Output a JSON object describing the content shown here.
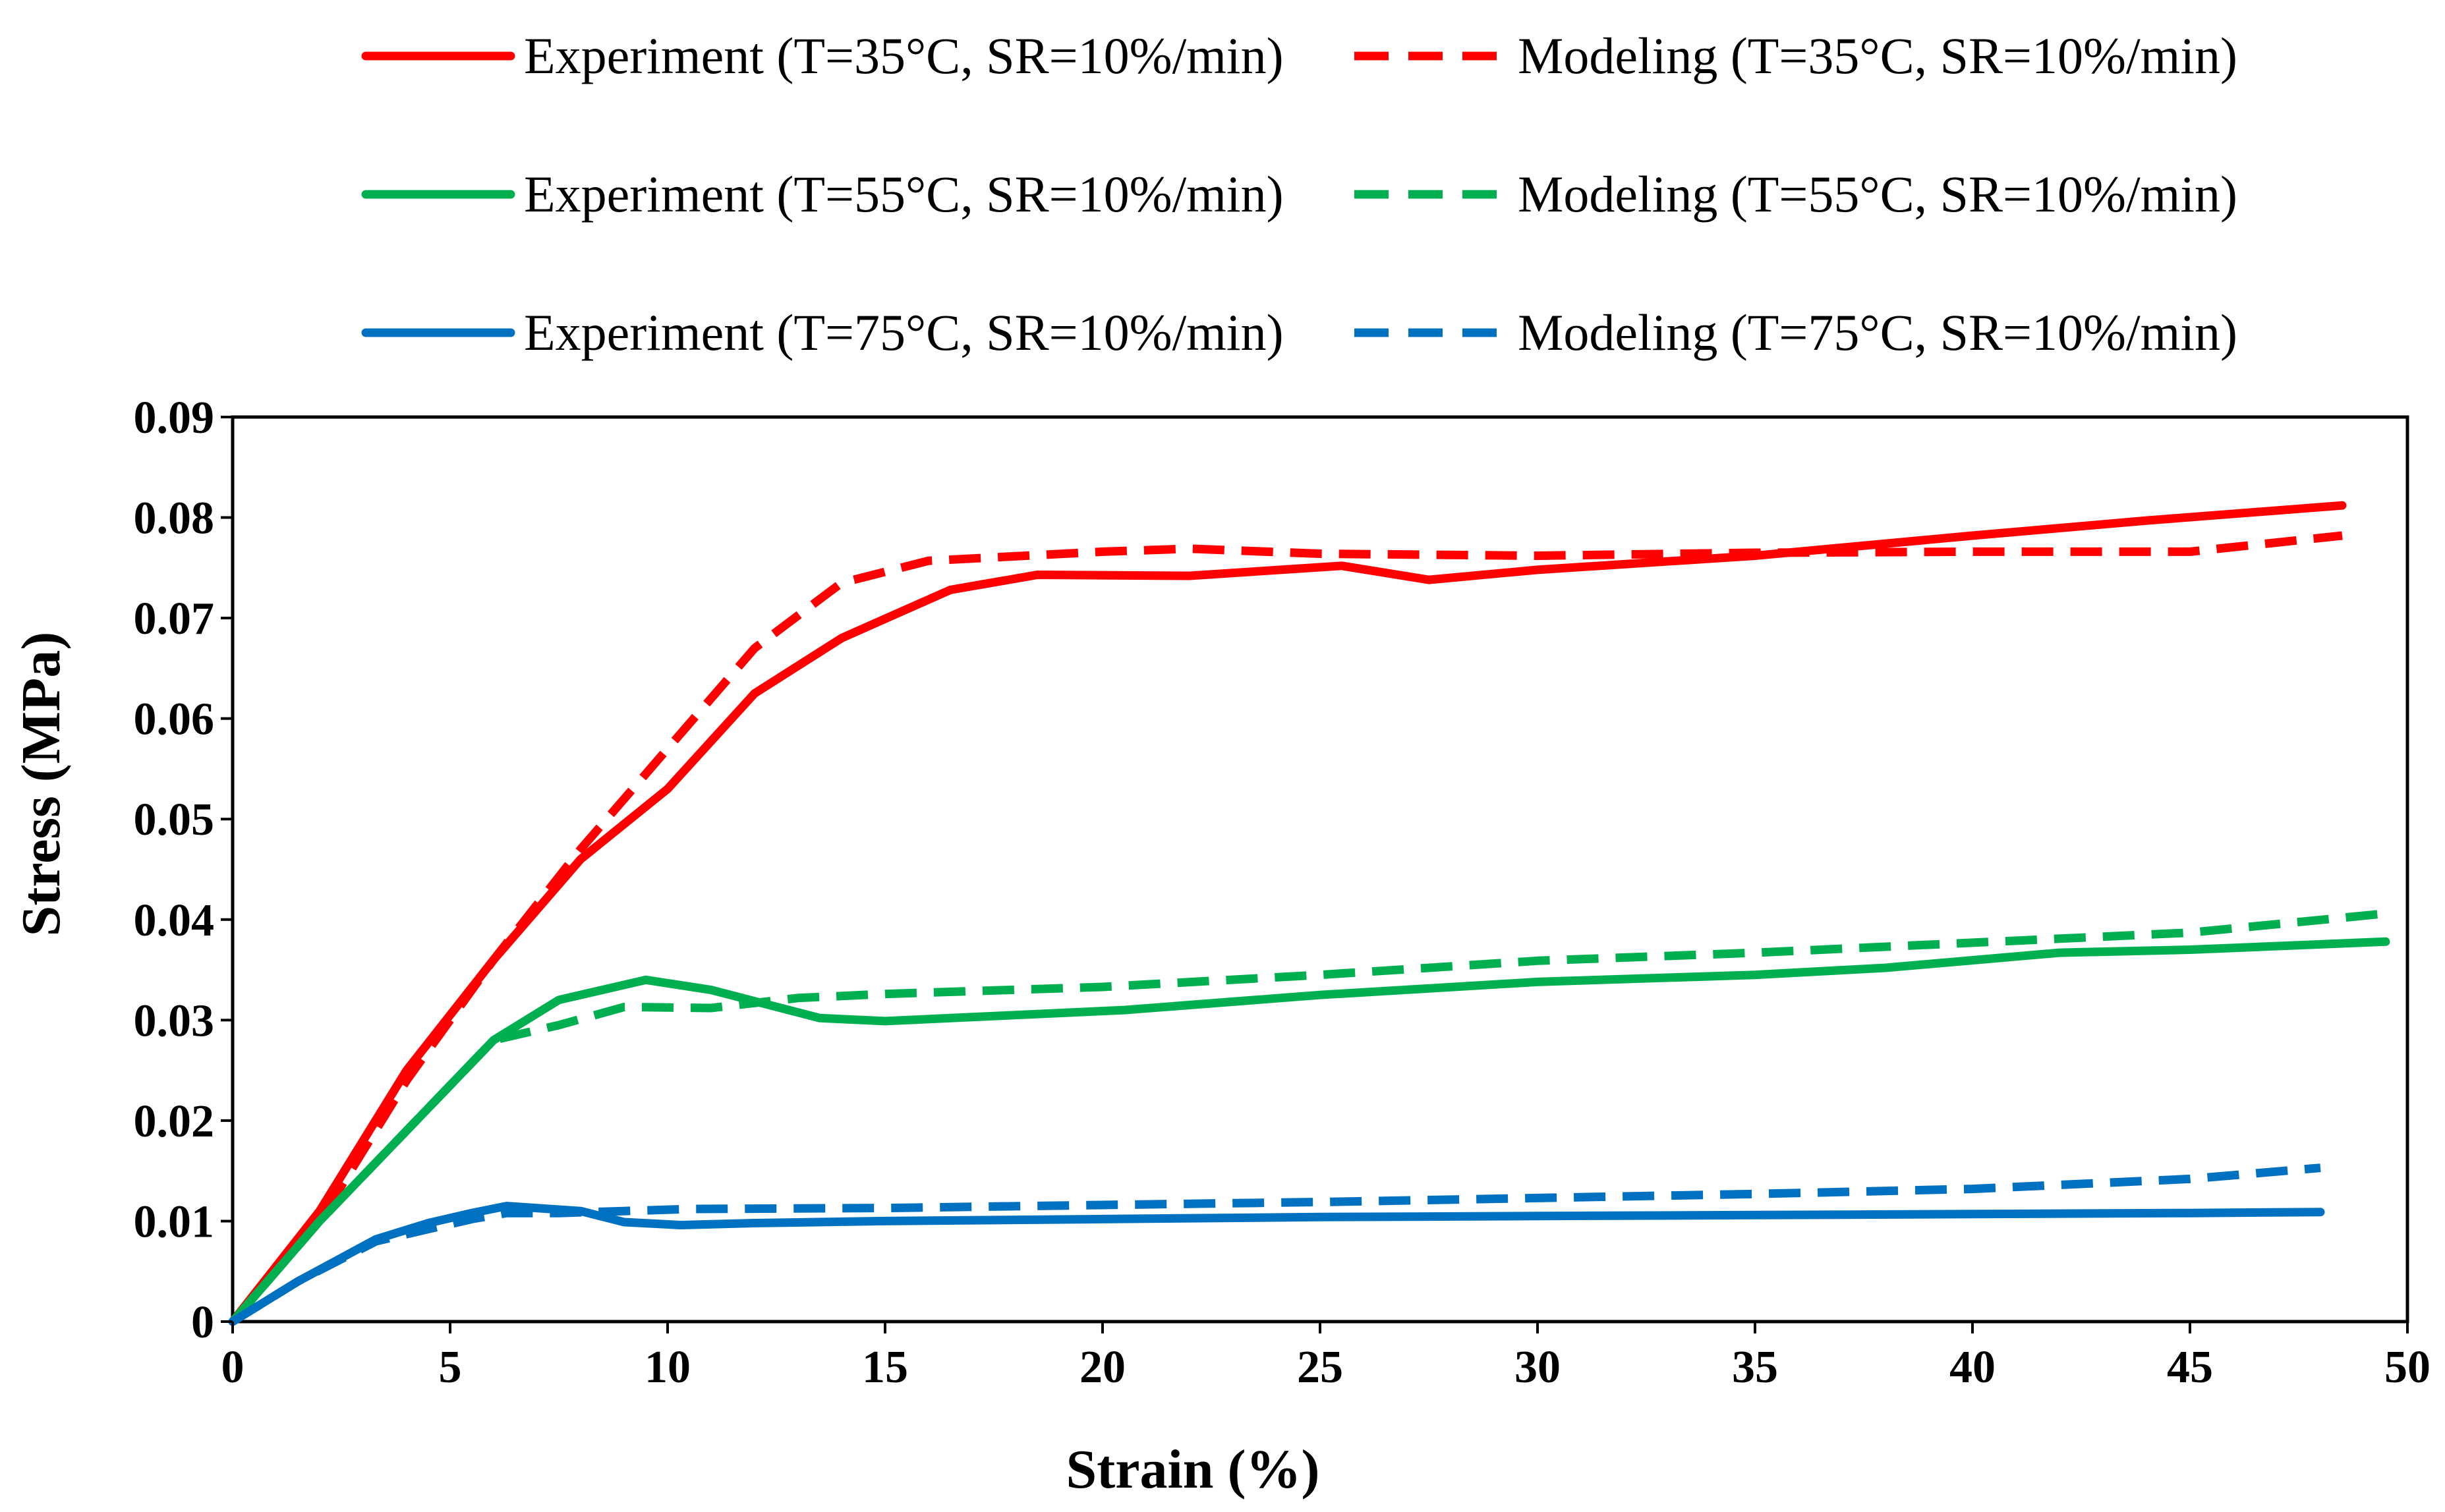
{
  "chart_data": {
    "type": "line",
    "title": "",
    "xlabel": "Strain (%)",
    "ylabel": "Stress (MPa)",
    "xlim": [
      0,
      50
    ],
    "ylim": [
      0,
      0.09
    ],
    "x_ticks": [
      0,
      5,
      10,
      15,
      20,
      25,
      30,
      35,
      40,
      45,
      50
    ],
    "x_tick_labels": [
      "0",
      "5",
      "10",
      "15",
      "20",
      "25",
      "30",
      "35",
      "40",
      "45",
      "50"
    ],
    "y_ticks": [
      0,
      0.01,
      0.02,
      0.03,
      0.04,
      0.05,
      0.06,
      0.07,
      0.08,
      0.09
    ],
    "y_tick_labels": [
      "0",
      "0.01",
      "0.02",
      "0.03",
      "0.04",
      "0.05",
      "0.06",
      "0.07",
      "0.08",
      "0.09"
    ],
    "grid": false,
    "legend_position": "top",
    "series": [
      {
        "name": "Experiment (T=35°C, SR=10%/min)",
        "color": "#ff0000",
        "style": "solid",
        "x": [
          0,
          2,
          4,
          6,
          8,
          10,
          12,
          14,
          16.5,
          18.5,
          22,
          25.5,
          27.5,
          30,
          35,
          40,
          44,
          48.5
        ],
        "y": [
          0,
          0.011,
          0.025,
          0.036,
          0.046,
          0.053,
          0.0625,
          0.068,
          0.0728,
          0.0743,
          0.0742,
          0.0752,
          0.0738,
          0.0748,
          0.0762,
          0.0782,
          0.0797,
          0.0812
        ]
      },
      {
        "name": "Modeling (T=35°C, SR=10%/min)",
        "color": "#ff0000",
        "style": "dashed",
        "x": [
          0,
          2,
          4,
          6,
          8,
          10,
          12,
          14,
          16,
          20,
          22,
          25,
          30,
          35,
          40,
          45,
          48.5
        ],
        "y": [
          0,
          0.01,
          0.024,
          0.036,
          0.047,
          0.057,
          0.067,
          0.0735,
          0.0757,
          0.0766,
          0.0769,
          0.0764,
          0.0762,
          0.0765,
          0.0766,
          0.0766,
          0.0782
        ]
      },
      {
        "name": "Experiment (T=55°C, SR=10%/min)",
        "color": "#00b050",
        "style": "solid",
        "x": [
          0,
          2,
          4,
          6,
          7.5,
          9.5,
          11,
          13.5,
          15,
          17,
          20.5,
          25,
          30,
          35,
          38,
          42,
          45,
          49.5
        ],
        "y": [
          0,
          0.01,
          0.019,
          0.028,
          0.032,
          0.034,
          0.033,
          0.0302,
          0.0299,
          0.0303,
          0.031,
          0.0325,
          0.0338,
          0.0345,
          0.0352,
          0.0367,
          0.037,
          0.0378
        ]
      },
      {
        "name": "Modeling (T=55°C, SR=10%/min)",
        "color": "#00b050",
        "style": "dashed",
        "x": [
          0,
          2,
          4,
          6,
          7.5,
          9,
          11,
          13,
          15,
          20,
          25,
          30,
          35,
          40,
          45,
          49.5
        ],
        "y": [
          0,
          0.01,
          0.019,
          0.028,
          0.0295,
          0.0313,
          0.0312,
          0.0322,
          0.0326,
          0.0333,
          0.0345,
          0.0359,
          0.0367,
          0.0377,
          0.0387,
          0.0406
        ]
      },
      {
        "name": "Experiment (T=75°C, SR=10%/min)",
        "color": "#0070c0",
        "style": "solid",
        "x": [
          0,
          1.5,
          3.3,
          4.5,
          5.5,
          6.3,
          8,
          9,
          10.3,
          12,
          15,
          20,
          25,
          30,
          35,
          40,
          45,
          48
        ],
        "y": [
          0,
          0.004,
          0.0082,
          0.0098,
          0.0108,
          0.0115,
          0.011,
          0.0099,
          0.0096,
          0.0098,
          0.01,
          0.0102,
          0.0104,
          0.0105,
          0.0106,
          0.0107,
          0.0108,
          0.0109
        ]
      },
      {
        "name": "Modeling (T=75°C, SR=10%/min)",
        "color": "#0070c0",
        "style": "dashed",
        "x": [
          0,
          1.5,
          3.3,
          4.5,
          5.5,
          6.3,
          7.5,
          9,
          10.5,
          15,
          20,
          25,
          30,
          35,
          40,
          45,
          48
        ],
        "y": [
          0,
          0.004,
          0.008,
          0.0092,
          0.0102,
          0.0108,
          0.0108,
          0.011,
          0.0112,
          0.0113,
          0.0116,
          0.0119,
          0.0123,
          0.0127,
          0.0132,
          0.0142,
          0.0153
        ]
      }
    ]
  }
}
